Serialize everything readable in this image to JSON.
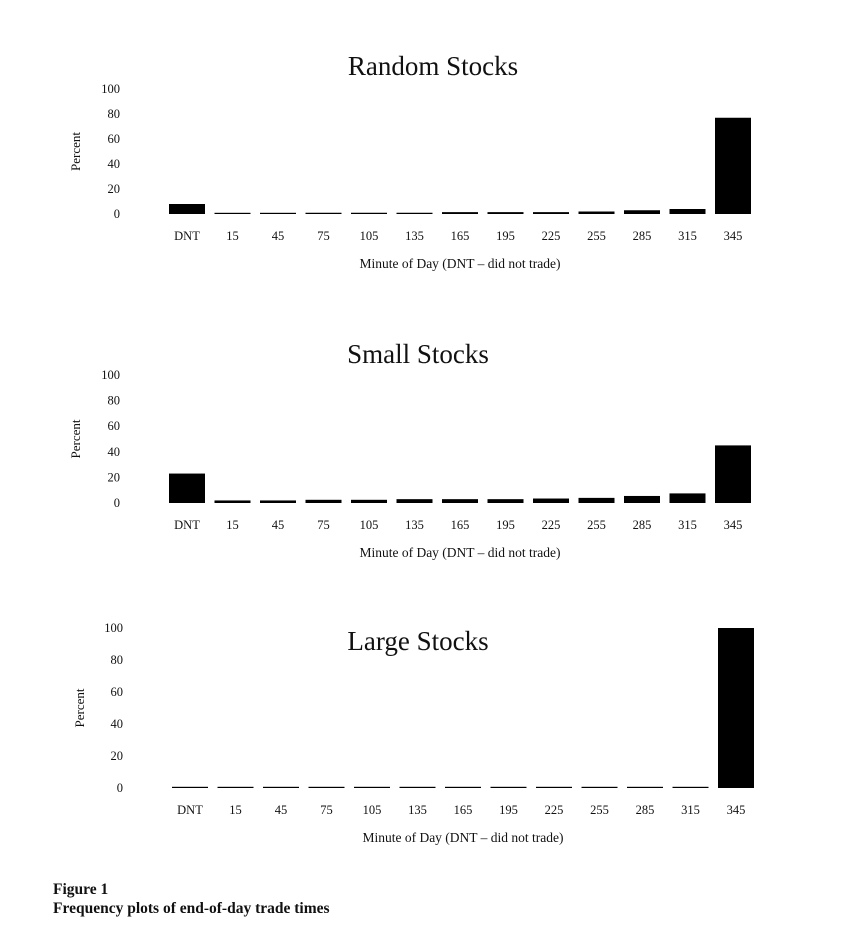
{
  "chart_data": [
    {
      "type": "bar",
      "title": "Random Stocks",
      "ylabel": "Percent",
      "xlabel": "Minute of Day (DNT – did not trade)",
      "yticks": [
        "100",
        "80",
        "60",
        "40",
        "20",
        "0"
      ],
      "ylim": [
        0,
        100
      ],
      "categories": [
        "DNT",
        "15",
        "45",
        "75",
        "105",
        "135",
        "165",
        "195",
        "225",
        "255",
        "285",
        "315",
        "345"
      ],
      "values": [
        8,
        0.5,
        0.5,
        1,
        1,
        1,
        1.5,
        1.5,
        1.5,
        2,
        3,
        4,
        77
      ]
    },
    {
      "type": "bar",
      "title": "Small Stocks",
      "ylabel": "Percent",
      "xlabel": "Minute of Day (DNT – did not trade)",
      "yticks": [
        "100",
        "80",
        "60",
        "40",
        "20",
        "0"
      ],
      "ylim": [
        0,
        100
      ],
      "categories": [
        "DNT",
        "15",
        "45",
        "75",
        "105",
        "135",
        "165",
        "195",
        "225",
        "255",
        "285",
        "315",
        "345"
      ],
      "values": [
        23,
        2,
        2,
        2.5,
        2.5,
        3,
        3,
        3,
        3.5,
        4,
        5.5,
        7.5,
        45
      ]
    },
    {
      "type": "bar",
      "title": "Large Stocks",
      "ylabel": "Percent",
      "xlabel": "Minute of Day (DNT – did not trade)",
      "yticks": [
        "100",
        "80",
        "60",
        "40",
        "20",
        "0"
      ],
      "ylim": [
        0,
        100
      ],
      "categories": [
        "DNT",
        "15",
        "45",
        "75",
        "105",
        "135",
        "165",
        "195",
        "225",
        "255",
        "285",
        "315",
        "345"
      ],
      "values": [
        0.2,
        0.2,
        0.2,
        0.2,
        0.2,
        0.2,
        0.3,
        0.3,
        0.3,
        0.3,
        0.3,
        0.3,
        100
      ]
    }
  ],
  "caption": {
    "label": "Figure 1",
    "text": "Frequency plots of end-of-day trade times"
  },
  "colors": {
    "bar": "#000000",
    "text": "#111111"
  }
}
